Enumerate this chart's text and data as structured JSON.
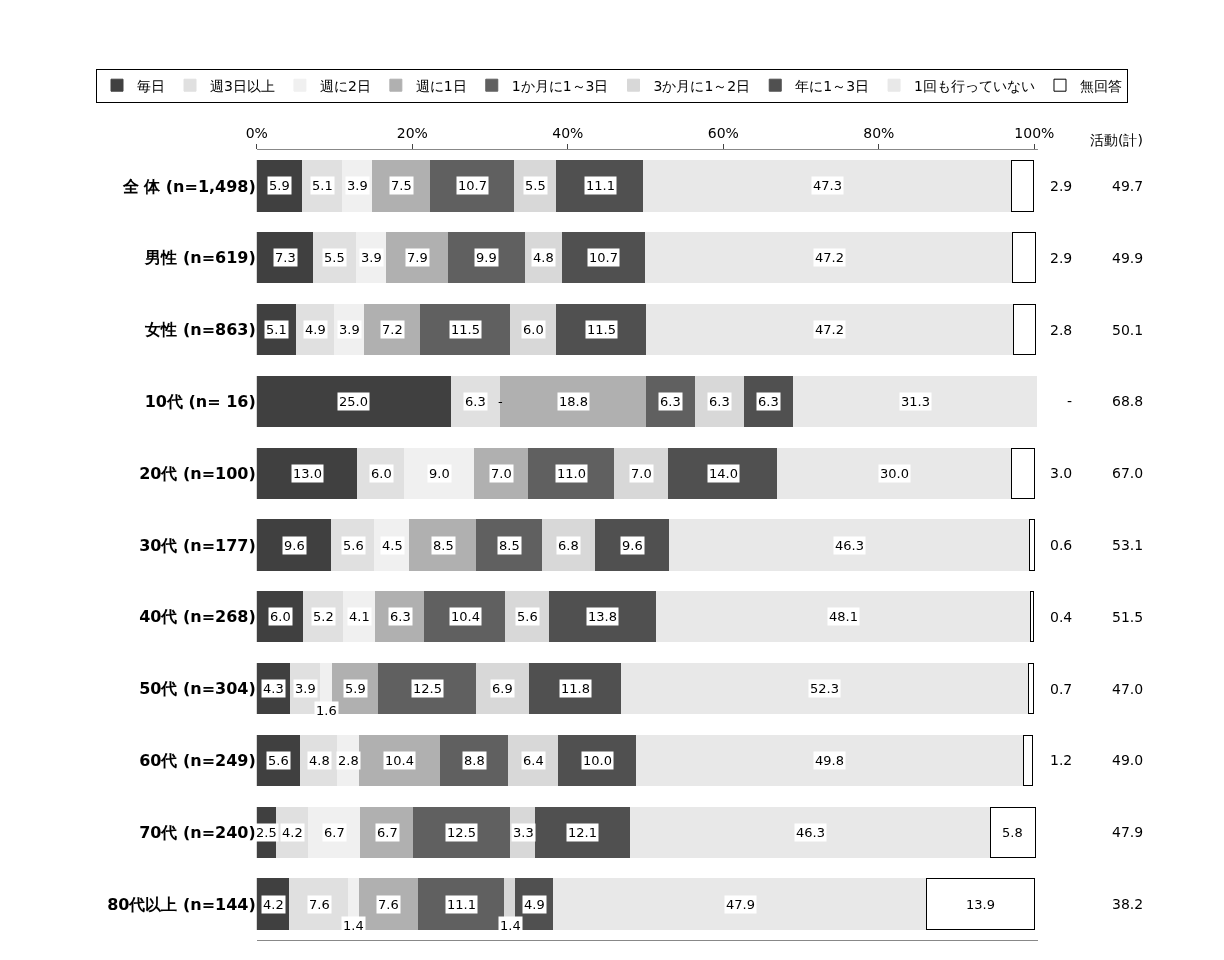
{
  "chart_data": {
    "type": "bar",
    "orientation": "horizontal",
    "stacked": true,
    "legend": "top",
    "grid": false,
    "categories": [
      "全 体 (n=1,498)",
      "男性 (n=619)",
      "女性 (n=863)",
      "10代 (n= 16)",
      "20代 (n=100)",
      "30代 (n=177)",
      "40代 (n=268)",
      "50代 (n=304)",
      "60代 (n=249)",
      "70代 (n=240)",
      "80代以上 (n=144)"
    ],
    "xlim": [
      0,
      100.5
    ],
    "xticks": [
      {
        "value": 0,
        "label": "0%"
      },
      {
        "value": 20,
        "label": "20%"
      },
      {
        "value": 40,
        "label": "40%"
      },
      {
        "value": 60,
        "label": "60%"
      },
      {
        "value": 80,
        "label": "80%"
      },
      {
        "value": 100,
        "label": "100%"
      }
    ],
    "series": [
      {
        "name": "毎日",
        "color": "#404040",
        "values": [
          5.9,
          7.3,
          5.1,
          25.0,
          13.0,
          9.6,
          6.0,
          4.3,
          5.6,
          2.5,
          4.2
        ],
        "value_labels": [
          "5.9",
          "7.3",
          "5.1",
          "25.0",
          "13.0",
          "9.6",
          "6.0",
          "4.3",
          "5.6",
          "2.5",
          "4.2"
        ]
      },
      {
        "name": "週3日以上",
        "color": "#e0e0e0",
        "values": [
          5.1,
          5.5,
          4.9,
          6.3,
          6.0,
          5.6,
          5.2,
          3.9,
          4.8,
          4.2,
          7.6
        ],
        "value_labels": [
          "5.1",
          "5.5",
          "4.9",
          "6.3",
          "6.0",
          "5.6",
          "5.2",
          "3.9",
          "4.8",
          "4.2",
          "7.6"
        ]
      },
      {
        "name": "週に2日",
        "color": "#f0f0f0",
        "values": [
          3.9,
          3.9,
          3.9,
          null,
          9.0,
          4.5,
          4.1,
          1.6,
          2.8,
          6.7,
          1.4
        ],
        "value_labels": [
          "3.9",
          "3.9",
          "3.9",
          "-",
          "9.0",
          "4.5",
          "4.1",
          "1.6",
          "2.8",
          "6.7",
          "1.4"
        ]
      },
      {
        "name": "週に1日",
        "color": "#b0b0b0",
        "values": [
          7.5,
          7.9,
          7.2,
          18.8,
          7.0,
          8.5,
          6.3,
          5.9,
          10.4,
          6.7,
          7.6
        ],
        "value_labels": [
          "7.5",
          "7.9",
          "7.2",
          "18.8",
          "7.0",
          "8.5",
          "6.3",
          "5.9",
          "10.4",
          "6.7",
          "7.6"
        ]
      },
      {
        "name": "1か月に1～3日",
        "color": "#606060",
        "values": [
          10.7,
          9.9,
          11.5,
          6.3,
          11.0,
          8.5,
          10.4,
          12.5,
          8.8,
          12.5,
          11.1
        ],
        "value_labels": [
          "10.7",
          "9.9",
          "11.5",
          "6.3",
          "11.0",
          "8.5",
          "10.4",
          "12.5",
          "8.8",
          "12.5",
          "11.1"
        ]
      },
      {
        "name": "3か月に1～2日",
        "color": "#d8d8d8",
        "values": [
          5.5,
          4.8,
          6.0,
          6.3,
          7.0,
          6.8,
          5.6,
          6.9,
          6.4,
          3.3,
          1.4
        ],
        "value_labels": [
          "5.5",
          "4.8",
          "6.0",
          "6.3",
          "7.0",
          "6.8",
          "5.6",
          "6.9",
          "6.4",
          "3.3",
          "1.4"
        ]
      },
      {
        "name": "年に1～3日",
        "color": "#505050",
        "values": [
          11.1,
          10.7,
          11.5,
          6.3,
          14.0,
          9.6,
          13.8,
          11.8,
          10.0,
          12.1,
          4.9
        ],
        "value_labels": [
          "11.1",
          "10.7",
          "11.5",
          "6.3",
          "14.0",
          "9.6",
          "13.8",
          "11.8",
          "10.0",
          "12.1",
          "4.9"
        ]
      },
      {
        "name": "1回も行っていない",
        "color": "#e8e8e8",
        "values": [
          47.3,
          47.2,
          47.2,
          31.3,
          30.0,
          46.3,
          48.1,
          52.3,
          49.8,
          46.3,
          47.9
        ],
        "value_labels": [
          "47.3",
          "47.2",
          "47.2",
          "31.3",
          "30.0",
          "46.3",
          "48.1",
          "52.3",
          "49.8",
          "46.3",
          "47.9"
        ]
      },
      {
        "name": "無回答",
        "color": "#ffffff",
        "values": [
          2.9,
          2.9,
          2.8,
          null,
          3.0,
          0.6,
          0.4,
          0.7,
          1.2,
          5.8,
          13.9
        ],
        "value_labels": [
          "2.9",
          "2.9",
          "2.8",
          "-",
          "3.0",
          "0.6",
          "0.4",
          "0.7",
          "1.2",
          "5.8",
          "13.9"
        ]
      }
    ],
    "annotations": [
      "活動(計)",
      "49.7",
      "49.9",
      "50.1",
      "68.8",
      "67.0",
      "53.1",
      "51.5",
      "47.0",
      "49.0",
      "47.9",
      "38.2"
    ]
  }
}
